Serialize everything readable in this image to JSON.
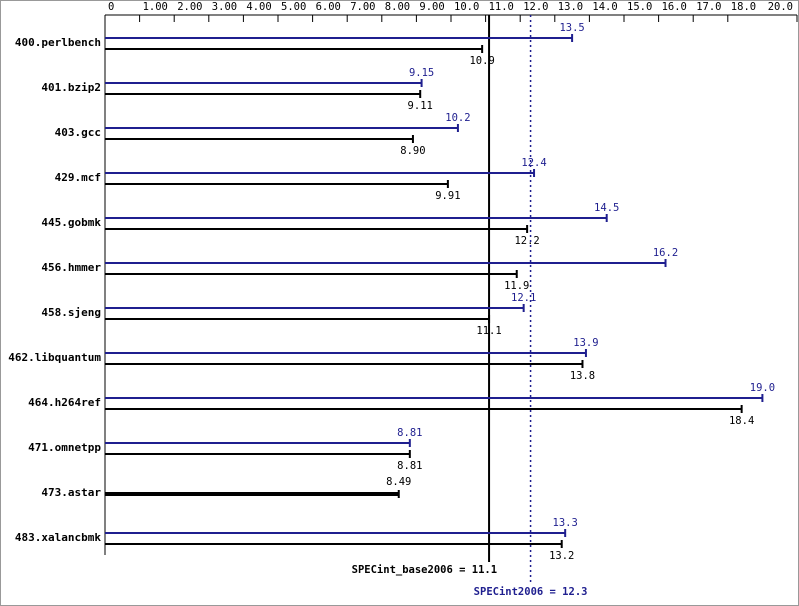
{
  "chart_data": {
    "type": "bar",
    "orientation": "horizontal",
    "categories": [
      "400.perlbench",
      "401.bzip2",
      "403.gcc",
      "429.mcf",
      "445.gobmk",
      "456.hmmer",
      "458.sjeng",
      "462.libquantum",
      "464.h264ref",
      "471.omnetpp",
      "473.astar",
      "483.xalancbmk"
    ],
    "series": [
      {
        "color": "#1f1f8f",
        "values": [
          13.5,
          9.15,
          10.2,
          12.4,
          14.5,
          16.2,
          12.1,
          13.9,
          19.0,
          8.81,
          null,
          13.3
        ],
        "value_labels": [
          "13.5",
          "9.15",
          "10.2",
          "12.4",
          "14.5",
          "16.2",
          "12.1",
          "13.9",
          "19.0",
          "8.81",
          null,
          "13.3"
        ]
      },
      {
        "color": "#000000",
        "values": [
          10.9,
          9.11,
          8.9,
          9.91,
          12.2,
          11.9,
          11.1,
          13.8,
          18.4,
          8.81,
          8.49,
          13.2
        ],
        "value_labels": [
          "10.9",
          "9.11",
          "8.90",
          "9.91",
          "12.2",
          "11.9",
          "11.1",
          "13.8",
          "18.4",
          "8.81",
          "8.49",
          "13.2"
        ]
      }
    ],
    "xlim": [
      0,
      20
    ],
    "xticks": [
      0,
      {
        "value": 1,
        "label": "1.00"
      },
      {
        "value": 2,
        "label": "2.00"
      },
      {
        "value": 3,
        "label": "3.00"
      },
      {
        "value": 4,
        "label": "4.00"
      },
      {
        "value": 5,
        "label": "5.00"
      },
      {
        "value": 6,
        "label": "6.00"
      },
      {
        "value": 7,
        "label": "7.00"
      },
      {
        "value": 8,
        "label": "8.00"
      },
      {
        "value": 9,
        "label": "9.00"
      },
      {
        "value": 10,
        "label": "10.0"
      },
      {
        "value": 11,
        "label": "11.0"
      },
      {
        "value": 12,
        "label": "12.0"
      },
      {
        "value": 13,
        "label": "13.0"
      },
      {
        "value": 14,
        "label": "14.0"
      },
      {
        "value": 15,
        "label": "15.0"
      },
      {
        "value": 16,
        "label": "16.0"
      },
      {
        "value": 17,
        "label": "17.0"
      },
      {
        "value": 18,
        "label": "18.0"
      },
      {
        "value": 20,
        "label": "20.0"
      }
    ],
    "reference_lines": [
      {
        "label": "SPECint_base2006 = 11.1",
        "value": 11.1,
        "color": "#000000",
        "style": "solid"
      },
      {
        "label": "SPECint2006 = 12.3",
        "value": 12.3,
        "color": "#1f1f8f",
        "style": "dotted"
      }
    ]
  }
}
